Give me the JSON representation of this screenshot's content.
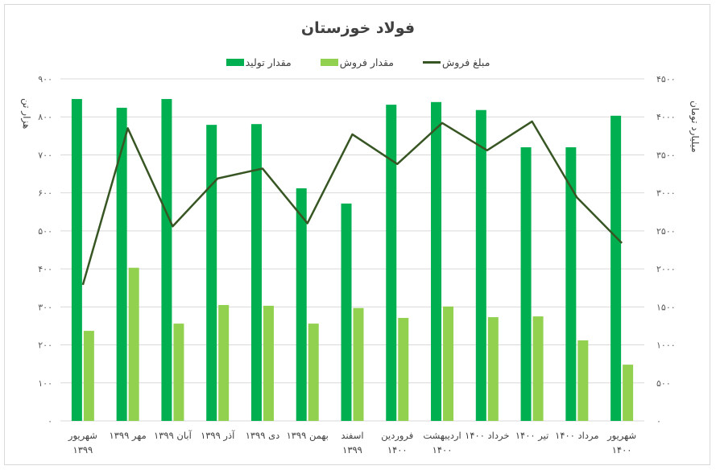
{
  "title": "فولاد خوزستان",
  "legend": [
    {
      "label": "مبلغ فروش",
      "type": "line",
      "color": "#375623"
    },
    {
      "label": "مقدار فروش",
      "type": "bar",
      "color": "#92d050"
    },
    {
      "label": "مقدار تولید",
      "type": "bar",
      "color": "#00b050"
    }
  ],
  "axes": {
    "left_title": "هزار تن",
    "right_title": "میلیارد تومان",
    "left_ticks": [
      "۰",
      "۱۰۰",
      "۲۰۰",
      "۳۰۰",
      "۴۰۰",
      "۵۰۰",
      "۶۰۰",
      "۷۰۰",
      "۸۰۰",
      "۹۰۰"
    ],
    "right_ticks": [
      "۰",
      "۵۰۰",
      "۱۰۰۰",
      "۱۵۰۰",
      "۲۰۰۰",
      "۲۵۰۰",
      "۳۰۰۰",
      "۳۵۰۰",
      "۴۰۰۰",
      "۴۵۰۰"
    ]
  },
  "categories_display": [
    [
      "شهریور",
      "۱۳۹۹"
    ],
    [
      "مهر ۱۳۹۹"
    ],
    [
      "آبان ۱۳۹۹"
    ],
    [
      "آذر ۱۳۹۹"
    ],
    [
      "دی ۱۳۹۹"
    ],
    [
      "بهمن ۱۳۹۹"
    ],
    [
      "اسفند",
      "۱۳۹۹"
    ],
    [
      "فروردین",
      "۱۴۰۰"
    ],
    [
      "اردیبهشت",
      "۱۴۰۰"
    ],
    [
      "خرداد ۱۴۰۰"
    ],
    [
      "تیر ۱۴۰۰"
    ],
    [
      "مرداد ۱۴۰۰"
    ],
    [
      "شهریور",
      "۱۴۰۰"
    ]
  ],
  "chart_data": {
    "type": "bar",
    "title": "فولاد خوزستان",
    "categories": [
      "شهریور ۱۳۹۹",
      "مهر ۱۳۹۹",
      "آبان ۱۳۹۹",
      "آذر ۱۳۹۹",
      "دی ۱۳۹۹",
      "بهمن ۱۳۹۹",
      "اسفند ۱۳۹۹",
      "فروردین ۱۴۰۰",
      "اردیبهشت ۱۴۰۰",
      "خرداد ۱۴۰۰",
      "تیر ۱۴۰۰",
      "مرداد ۱۴۰۰",
      "شهریور ۱۴۰۰"
    ],
    "series": [
      {
        "name": "مقدار تولید",
        "type": "bar",
        "axis": "left",
        "color": "#00b050",
        "values": [
          847,
          824,
          847,
          779,
          781,
          612,
          572,
          832,
          839,
          818,
          720,
          720,
          803
        ]
      },
      {
        "name": "مقدار فروش",
        "type": "bar",
        "axis": "left",
        "color": "#92d050",
        "values": [
          237,
          403,
          256,
          305,
          303,
          256,
          297,
          271,
          301,
          273,
          275,
          212,
          148
        ]
      },
      {
        "name": "مبلغ فروش",
        "type": "line",
        "axis": "right",
        "color": "#375623",
        "values": [
          1790,
          3850,
          2560,
          3190,
          3320,
          2600,
          3770,
          3380,
          3920,
          3560,
          3940,
          2940,
          2340
        ]
      }
    ],
    "ylabel": "هزار تن",
    "y2label": "میلیارد تومان",
    "ylim": [
      0,
      900
    ],
    "y2lim": [
      0,
      4500
    ],
    "grid": true,
    "legend_position": "top"
  }
}
